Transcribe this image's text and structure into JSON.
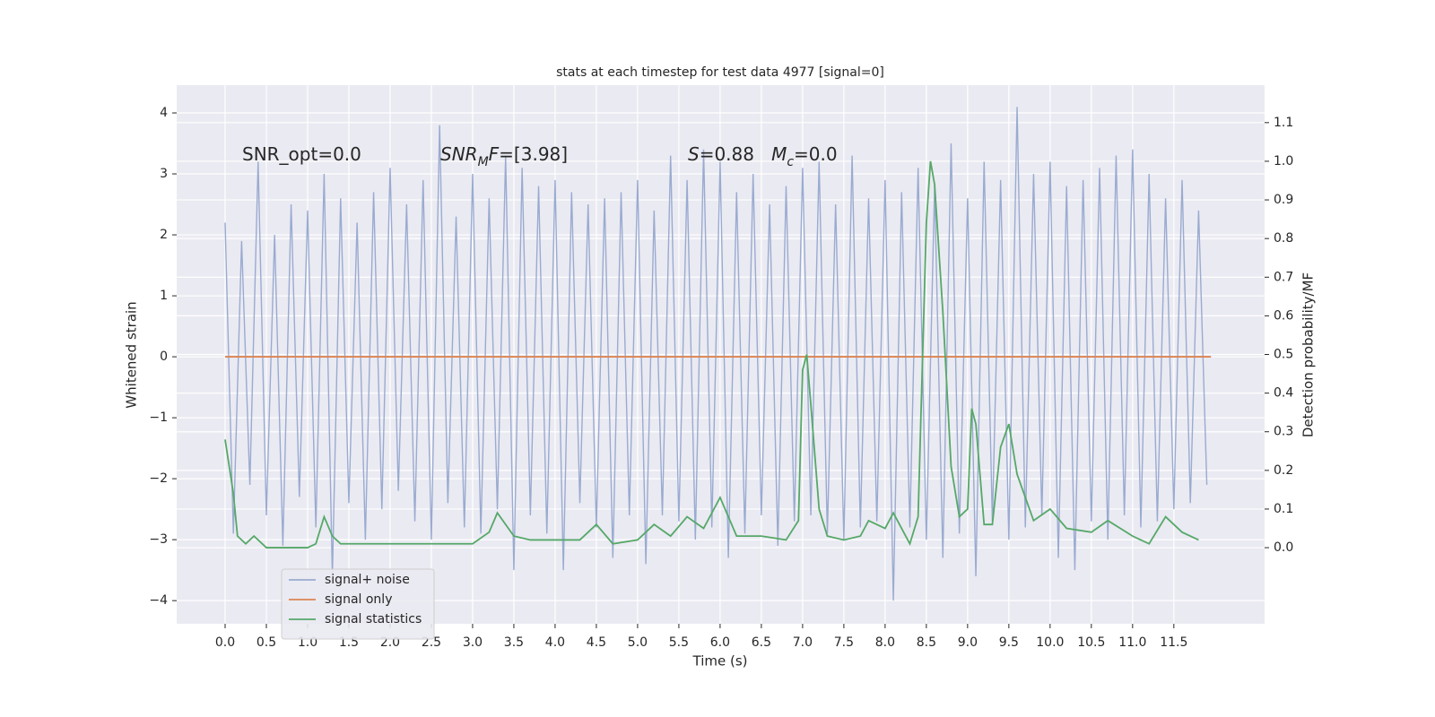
{
  "chart_data": {
    "type": "line",
    "title": "stats at each timestep for test data 4977 [signal=0]",
    "xlabel": "Time (s)",
    "ylabel": "Whitened strain",
    "y2label": "Detection probability/MF",
    "annotations": [
      [
        {
          "text": "SNR_opt=0.0",
          "italic": false,
          "sub": false
        }
      ],
      [
        {
          "text": "SNR",
          "italic": true,
          "sub": false
        },
        {
          "text": "M",
          "italic": true,
          "sub": true
        },
        {
          "text": "F",
          "italic": true,
          "sub": false
        },
        {
          "text": "=[3.98]",
          "italic": false,
          "sub": false
        }
      ],
      [
        {
          "text": "S",
          "italic": true,
          "sub": false
        },
        {
          "text": "=0.88   ",
          "italic": false,
          "sub": false
        },
        {
          "text": "M",
          "italic": true,
          "sub": false
        },
        {
          "text": "c",
          "italic": true,
          "sub": true
        },
        {
          "text": "=0.0",
          "italic": false,
          "sub": false
        }
      ]
    ],
    "xlim": [
      -0.587,
      12.6
    ],
    "ylim": [
      -4.38,
      4.456
    ],
    "y2lim": [
      -0.197,
      1.197
    ],
    "xticks": [
      {
        "value": 0,
        "label": "0.0"
      },
      0.5,
      {
        "value": 1,
        "label": "1.0"
      },
      1.5,
      {
        "value": 2,
        "label": "2.0"
      },
      2.5,
      {
        "value": 3,
        "label": "3.0"
      },
      3.5,
      {
        "value": 4,
        "label": "4.0"
      },
      4.5,
      {
        "value": 5,
        "label": "5.0"
      },
      5.5,
      {
        "value": 6,
        "label": "6.0"
      },
      6.5,
      {
        "value": 7,
        "label": "7.0"
      },
      7.5,
      {
        "value": 8,
        "label": "8.0"
      },
      8.5,
      {
        "value": 9,
        "label": "9.0"
      },
      9.5,
      {
        "value": 10,
        "label": "10.0"
      },
      10.5,
      {
        "value": 11,
        "label": "11.0"
      },
      11.5
    ],
    "yticks": [
      {
        "value": -4,
        "label": "−4"
      },
      {
        "value": -3,
        "label": "−3"
      },
      {
        "value": -2,
        "label": "−2"
      },
      {
        "value": -1,
        "label": "−1"
      },
      0,
      1,
      2,
      3,
      4
    ],
    "y2ticks": [
      {
        "value": 0,
        "label": "0.0"
      },
      0.1,
      0.2,
      0.3,
      0.4,
      0.5,
      0.6,
      0.7,
      0.8,
      0.9,
      {
        "value": 1,
        "label": "1.0"
      },
      1.1
    ],
    "grid": true,
    "legend": "lower left",
    "series": [
      {
        "name": "signal+ noise",
        "color": "#9aabd0",
        "x": [
          0,
          0.1,
          0.2,
          0.3,
          0.4,
          0.5,
          0.6,
          0.7,
          0.8,
          0.9,
          1,
          1.1,
          1.2,
          1.3,
          1.4,
          1.5,
          1.6,
          1.7,
          1.8,
          1.9,
          2,
          2.1,
          2.2,
          2.3,
          2.4,
          2.5,
          2.6,
          2.7,
          2.8,
          2.9,
          3,
          3.1,
          3.2,
          3.3,
          3.4,
          3.5,
          3.6,
          3.7,
          3.8,
          3.9,
          4,
          4.1,
          4.2,
          4.3,
          4.4,
          4.5,
          4.6,
          4.7,
          4.8,
          4.9,
          5,
          5.1,
          5.2,
          5.3,
          5.4,
          5.5,
          5.6,
          5.7,
          5.8,
          5.9,
          6,
          6.1,
          6.2,
          6.3,
          6.4,
          6.5,
          6.6,
          6.7,
          6.8,
          6.9,
          7,
          7.1,
          7.2,
          7.3,
          7.4,
          7.5,
          7.6,
          7.7,
          7.8,
          7.9,
          8,
          8.1,
          8.2,
          8.3,
          8.4,
          8.5,
          8.6,
          8.7,
          8.8,
          8.9,
          9,
          9.1,
          9.2,
          9.3,
          9.4,
          9.5,
          9.6,
          9.7,
          9.8,
          9.9,
          10,
          10.1,
          10.2,
          10.3,
          10.4,
          10.5,
          10.6,
          10.7,
          10.8,
          10.9,
          11,
          11.1,
          11.2,
          11.3,
          11.4,
          11.5,
          11.6,
          11.7,
          11.8,
          11.9
        ],
        "values": [
          2.2,
          -2.9,
          1.9,
          -2.1,
          3.2,
          -2.6,
          2.0,
          -3.1,
          2.5,
          -2.3,
          2.4,
          -2.8,
          3.0,
          -3.6,
          2.6,
          -2.4,
          2.2,
          -3.0,
          2.7,
          -2.5,
          3.1,
          -2.2,
          2.5,
          -2.7,
          2.9,
          -3.0,
          3.8,
          -2.4,
          2.3,
          -2.8,
          3.0,
          -2.9,
          2.6,
          -2.5,
          3.3,
          -3.5,
          3.1,
          -2.6,
          2.8,
          -2.9,
          2.9,
          -3.5,
          2.7,
          -2.4,
          2.5,
          -2.8,
          2.6,
          -3.3,
          2.7,
          -2.6,
          2.9,
          -3.4,
          2.4,
          -2.6,
          3.3,
          -2.7,
          2.9,
          -3.0,
          3.4,
          -2.8,
          3.2,
          -3.3,
          2.7,
          -2.9,
          3.0,
          -2.6,
          2.5,
          -3.1,
          2.8,
          -2.7,
          3.1,
          -2.6,
          3.2,
          -2.9,
          2.5,
          -3.0,
          3.3,
          -2.8,
          2.6,
          -2.7,
          2.9,
          -4.0,
          2.7,
          -2.8,
          3.1,
          -3.0,
          2.8,
          -3.3,
          3.5,
          -2.9,
          2.6,
          -3.6,
          3.2,
          -2.7,
          2.9,
          -3.0,
          4.1,
          -2.8,
          3.0,
          -2.6,
          3.2,
          -3.3,
          2.8,
          -3.5,
          2.9,
          -2.7,
          3.1,
          -3.0,
          3.3,
          -2.6,
          3.4,
          -2.8,
          3.0,
          -2.7,
          2.6,
          -2.5,
          2.9,
          -2.4,
          2.4,
          -2.1
        ]
      },
      {
        "name": "signal only",
        "color": "#dd8452",
        "x": [
          0,
          11.95
        ],
        "values": [
          0,
          0
        ]
      },
      {
        "name": "signal statistics",
        "color": "#55a868",
        "axis": "y2",
        "x": [
          0,
          0.1,
          0.15,
          0.25,
          0.35,
          0.5,
          1.0,
          1.1,
          1.2,
          1.3,
          1.4,
          2.0,
          2.5,
          3.0,
          3.2,
          3.3,
          3.5,
          3.7,
          4.0,
          4.3,
          4.5,
          4.7,
          5.0,
          5.2,
          5.4,
          5.6,
          5.8,
          6.0,
          6.2,
          6.5,
          6.8,
          6.95,
          7.0,
          7.05,
          7.1,
          7.2,
          7.3,
          7.5,
          7.7,
          7.8,
          8.0,
          8.1,
          8.3,
          8.4,
          8.5,
          8.55,
          8.6,
          8.7,
          8.8,
          8.9,
          9.0,
          9.05,
          9.1,
          9.2,
          9.3,
          9.4,
          9.5,
          9.6,
          9.8,
          10.0,
          10.2,
          10.5,
          10.7,
          11.0,
          11.2,
          11.4,
          11.6,
          11.8
        ],
        "values": [
          0.28,
          0.14,
          0.03,
          0.01,
          0.03,
          0.0,
          0.0,
          0.01,
          0.08,
          0.03,
          0.01,
          0.01,
          0.01,
          0.01,
          0.04,
          0.09,
          0.03,
          0.02,
          0.02,
          0.02,
          0.06,
          0.01,
          0.02,
          0.06,
          0.03,
          0.08,
          0.05,
          0.13,
          0.03,
          0.03,
          0.02,
          0.07,
          0.46,
          0.5,
          0.37,
          0.1,
          0.03,
          0.02,
          0.03,
          0.07,
          0.05,
          0.09,
          0.01,
          0.08,
          0.84,
          1.0,
          0.94,
          0.61,
          0.21,
          0.08,
          0.1,
          0.36,
          0.32,
          0.06,
          0.06,
          0.26,
          0.32,
          0.19,
          0.07,
          0.1,
          0.05,
          0.04,
          0.07,
          0.03,
          0.01,
          0.08,
          0.04,
          0.02
        ]
      }
    ]
  }
}
